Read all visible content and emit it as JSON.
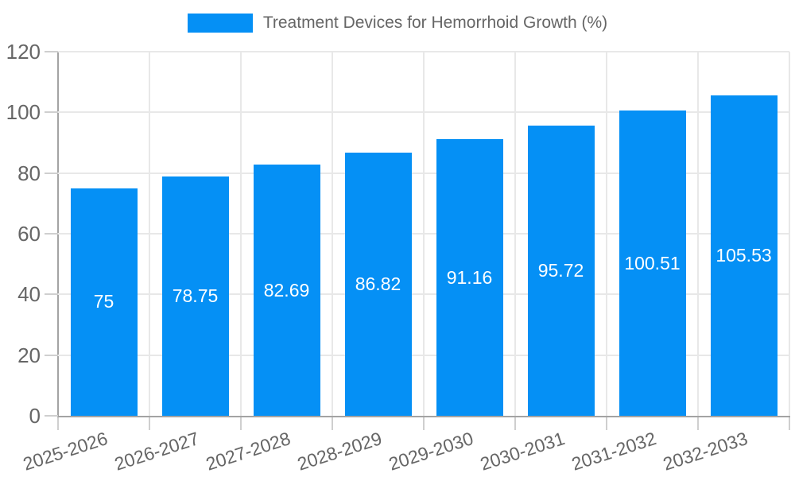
{
  "chart_data": {
    "type": "bar",
    "title": "",
    "legend": {
      "label": "Treatment Devices for Hemorrhoid Growth (%)",
      "position": "top"
    },
    "categories": [
      "2025-2026",
      "2026-2027",
      "2027-2028",
      "2028-2029",
      "2029-2030",
      "2030-2031",
      "2031-2032",
      "2032-2033"
    ],
    "series": [
      {
        "name": "Treatment Devices for Hemorrhoid Growth (%)",
        "values": [
          75,
          78.75,
          82.69,
          86.82,
          91.16,
          95.72,
          100.51,
          105.53
        ],
        "value_labels": [
          "75",
          "78.75",
          "82.69",
          "86.82",
          "91.16",
          "95.72",
          "100.51",
          "105.53"
        ]
      }
    ],
    "xlabel": "",
    "ylabel": "",
    "ylim": [
      0,
      120
    ],
    "yticks": [
      0,
      20,
      40,
      60,
      80,
      100,
      120
    ],
    "ytick_labels": [
      "0",
      "20",
      "40",
      "60",
      "80",
      "100",
      "120"
    ],
    "grid": true,
    "colors": {
      "bar": "#0590F5",
      "grid": "#e8e8e8",
      "axis": "#a3a3a3",
      "tick": "#cfcfcf",
      "text": "#666666",
      "value_label": "#ffffff",
      "background": "#ffffff"
    }
  }
}
